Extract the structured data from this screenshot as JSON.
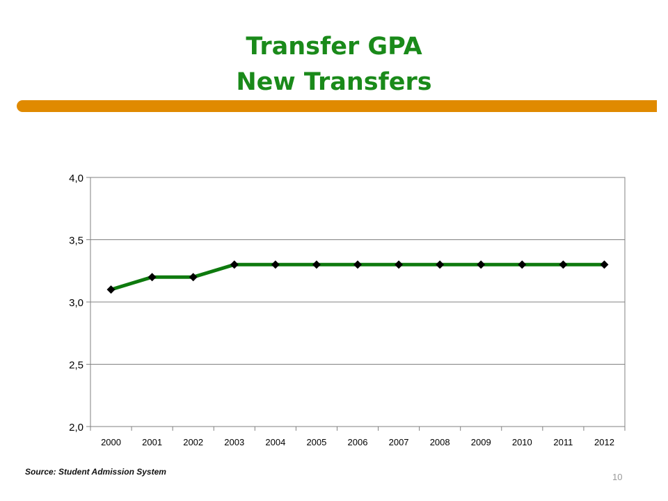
{
  "slide": {
    "title_line1": "Transfer GPA",
    "title_line2": "New Transfers",
    "source": "Source:  Student Admission System",
    "page_number": "10"
  },
  "colors": {
    "title": "#1a8a1a",
    "accent_bar": "#e08a00",
    "series_line": "#0e7a0e",
    "marker": "#000000",
    "gridline": "#808080"
  },
  "chart_data": {
    "type": "line",
    "categories": [
      "2000",
      "2001",
      "2002",
      "2003",
      "2004",
      "2005",
      "2006",
      "2007",
      "2008",
      "2009",
      "2010",
      "2011",
      "2012"
    ],
    "series": [
      {
        "values": [
          3.1,
          3.2,
          3.2,
          3.3,
          3.3,
          3.3,
          3.3,
          3.3,
          3.3,
          3.3,
          3.3,
          3.3,
          3.3
        ]
      }
    ],
    "ylim": [
      2.0,
      4.0
    ],
    "yticks": [
      "2,0",
      "2,5",
      "3,0",
      "3,5",
      "4,0"
    ],
    "ytick_values": [
      2.0,
      2.5,
      3.0,
      3.5,
      4.0
    ],
    "grid": true,
    "legend": "none",
    "marker": "diamond"
  }
}
